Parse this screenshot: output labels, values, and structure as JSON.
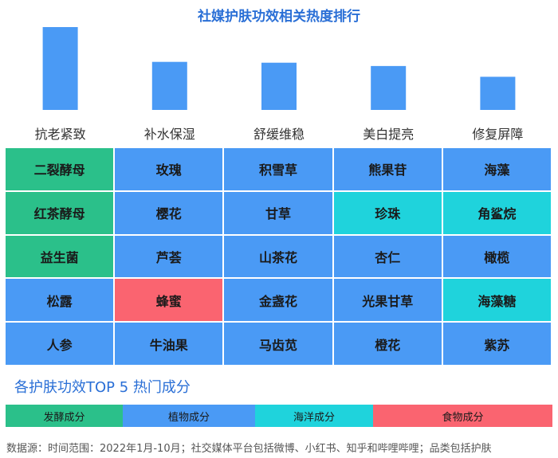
{
  "title": "社媒护肤功效相关热度排行",
  "chart_data": {
    "type": "bar",
    "title": "社媒护肤功效相关热度排行",
    "categories": [
      "抗老紧致",
      "补水保湿",
      "舒缓维稳",
      "美白提亮",
      "修复屏障"
    ],
    "values": [
      100,
      58,
      57,
      53,
      40
    ],
    "ylim": [
      0,
      100
    ],
    "bar_color": "#4a9af5",
    "grid": false
  },
  "table": {
    "rows": [
      [
        {
          "text": "二裂酵母",
          "type": "ferment"
        },
        {
          "text": "玫瑰",
          "type": "plant"
        },
        {
          "text": "积雪草",
          "type": "plant"
        },
        {
          "text": "熊果苷",
          "type": "plant"
        },
        {
          "text": "海藻",
          "type": "plant"
        }
      ],
      [
        {
          "text": "红茶酵母",
          "type": "ferment"
        },
        {
          "text": "樱花",
          "type": "plant"
        },
        {
          "text": "甘草",
          "type": "plant"
        },
        {
          "text": "珍珠",
          "type": "ocean"
        },
        {
          "text": "角鲨烷",
          "type": "ocean"
        }
      ],
      [
        {
          "text": "益生菌",
          "type": "ferment"
        },
        {
          "text": "芦荟",
          "type": "plant"
        },
        {
          "text": "山茶花",
          "type": "plant"
        },
        {
          "text": "杏仁",
          "type": "plant"
        },
        {
          "text": "橄榄",
          "type": "plant"
        }
      ],
      [
        {
          "text": "松露",
          "type": "plant"
        },
        {
          "text": "蜂蜜",
          "type": "food"
        },
        {
          "text": "金盏花",
          "type": "plant"
        },
        {
          "text": "光果甘草",
          "type": "plant"
        },
        {
          "text": "海藻糖",
          "type": "ocean"
        }
      ],
      [
        {
          "text": "人参",
          "type": "plant"
        },
        {
          "text": "牛油果",
          "type": "plant"
        },
        {
          "text": "马齿苋",
          "type": "plant"
        },
        {
          "text": "橙花",
          "type": "plant"
        },
        {
          "text": "紫苏",
          "type": "plant"
        }
      ]
    ]
  },
  "colors": {
    "ferment": "#2bc08a",
    "plant": "#4a9af5",
    "ocean": "#1fd3dc",
    "food": "#fa6470"
  },
  "subtitle": "各护肤功效TOP 5 热门成分",
  "legend": [
    {
      "label": "发酵成分",
      "type": "ferment"
    },
    {
      "label": "植物成分",
      "type": "plant"
    },
    {
      "label": "海洋成分",
      "type": "ocean"
    },
    {
      "label": "食物成分",
      "type": "food"
    }
  ],
  "source": "数据源：时间范围：2022年1月-10月；社交媒体平台包括微博、小红书、知乎和哔哩哔哩；品类包括护肤"
}
